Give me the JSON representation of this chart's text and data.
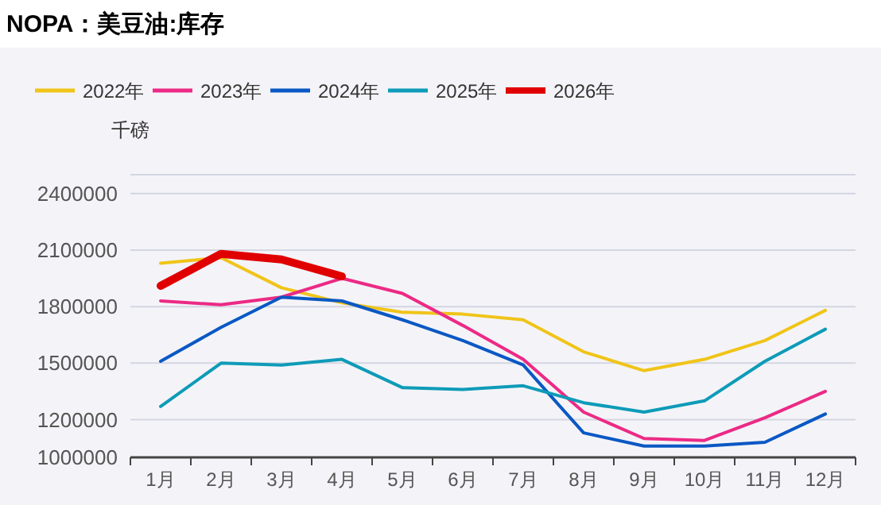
{
  "chart_data": {
    "type": "line",
    "title": "NOPA：美豆油:库存",
    "ylabel": "千磅",
    "categories": [
      "1月",
      "2月",
      "3月",
      "4月",
      "5月",
      "6月",
      "7月",
      "8月",
      "9月",
      "10月",
      "11月",
      "12月"
    ],
    "series": [
      {
        "name": "2022年",
        "color": "#f0c419",
        "values": [
          2030000,
          2060000,
          1900000,
          1820000,
          1770000,
          1760000,
          1730000,
          1560000,
          1460000,
          1520000,
          1620000,
          1780000
        ]
      },
      {
        "name": "2023年",
        "color": "#ec2a85",
        "values": [
          1830000,
          1810000,
          1850000,
          1950000,
          1870000,
          1700000,
          1520000,
          1240000,
          1100000,
          1090000,
          1210000,
          1350000
        ]
      },
      {
        "name": "2024年",
        "color": "#0a58c4",
        "values": [
          1510000,
          1690000,
          1850000,
          1830000,
          1730000,
          1620000,
          1490000,
          1130000,
          1060000,
          1060000,
          1080000,
          1230000
        ]
      },
      {
        "name": "2025年",
        "color": "#0e9bb8",
        "values": [
          1270000,
          1500000,
          1490000,
          1520000,
          1370000,
          1360000,
          1380000,
          1290000,
          1240000,
          1300000,
          1510000,
          1680000
        ]
      },
      {
        "name": "2026年",
        "color": "#e00000",
        "values": [
          1910000,
          2080000,
          2050000,
          1960000,
          null,
          null,
          null,
          null,
          null,
          null,
          null,
          null
        ]
      }
    ],
    "ylim": [
      1000000,
      2500000
    ],
    "yticks": [
      1000000,
      1200000,
      1500000,
      1800000,
      2100000,
      2400000,
      {
        "value": 2500000,
        "label": null
      }
    ],
    "grid": "y",
    "legend": "top left",
    "marker": "none"
  }
}
